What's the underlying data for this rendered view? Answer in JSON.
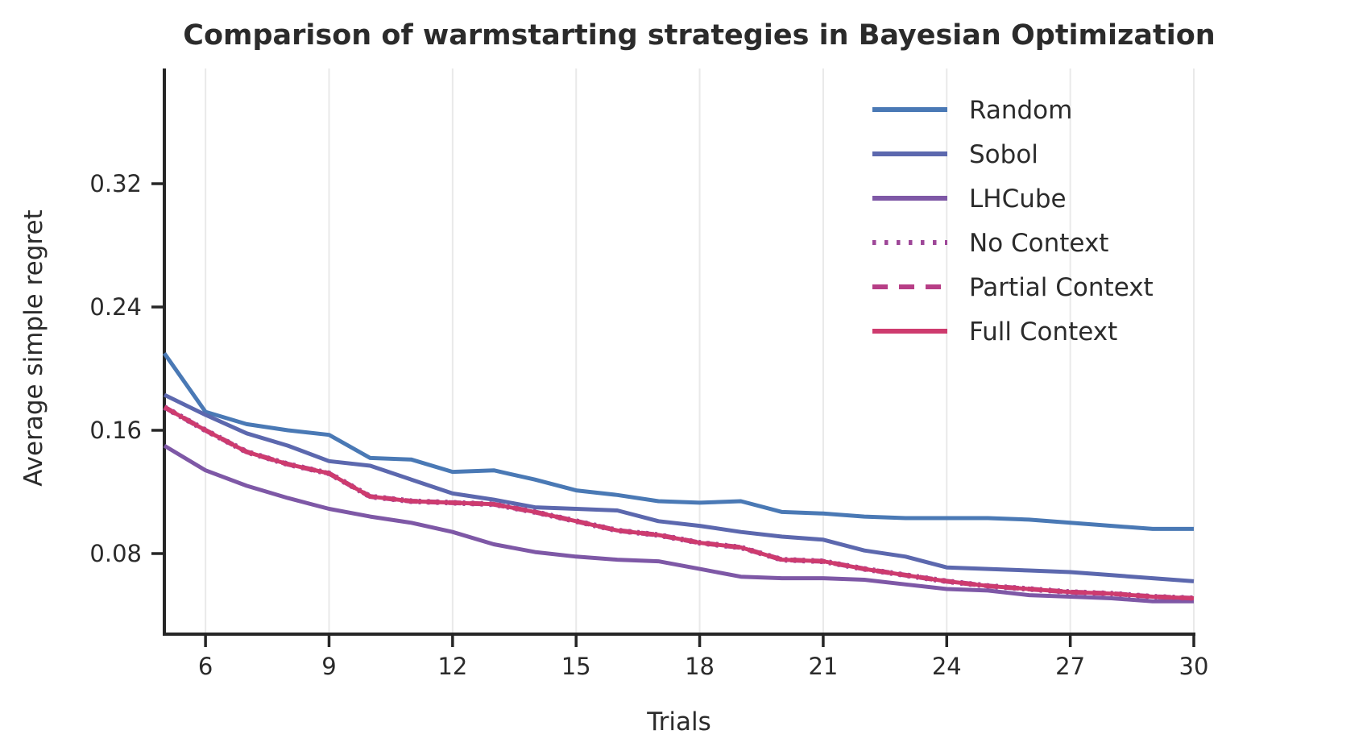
{
  "chart_data": {
    "type": "line",
    "title": "Comparison of warmstarting strategies in Bayesian Optimization",
    "xlabel": "Trials",
    "ylabel": "Average simple regret",
    "x": [
      5,
      6,
      7,
      8,
      9,
      10,
      11,
      12,
      13,
      14,
      15,
      16,
      17,
      18,
      19,
      20,
      21,
      22,
      23,
      24,
      25,
      26,
      27,
      28,
      29,
      30
    ],
    "xticks": [
      6,
      9,
      12,
      15,
      18,
      21,
      24,
      27,
      30
    ],
    "yticks": [
      0.08,
      0.16,
      0.24,
      0.32
    ],
    "xlim": [
      5,
      30
    ],
    "ylim": [
      0.028,
      0.395
    ],
    "grid": "vertical-only",
    "grid_color": "#e9e9e9",
    "legend_position": "upper-right",
    "series": [
      {
        "name": "Random",
        "color": "#4a79b5",
        "style": "solid",
        "values": [
          0.21,
          0.172,
          0.164,
          0.16,
          0.157,
          0.142,
          0.141,
          0.133,
          0.134,
          0.128,
          0.121,
          0.118,
          0.114,
          0.113,
          0.114,
          0.107,
          0.106,
          0.104,
          0.103,
          0.103,
          0.103,
          0.102,
          0.1,
          0.098,
          0.096,
          0.096
        ]
      },
      {
        "name": "Sobol",
        "color": "#5c68ae",
        "style": "solid",
        "values": [
          0.183,
          0.17,
          0.158,
          0.15,
          0.14,
          0.137,
          0.128,
          0.119,
          0.115,
          0.11,
          0.109,
          0.108,
          0.101,
          0.098,
          0.094,
          0.091,
          0.089,
          0.082,
          0.078,
          0.071,
          0.07,
          0.069,
          0.068,
          0.066,
          0.064,
          0.062
        ]
      },
      {
        "name": "LHCube",
        "color": "#7e58a6",
        "style": "solid",
        "values": [
          0.15,
          0.134,
          0.124,
          0.116,
          0.109,
          0.104,
          0.1,
          0.094,
          0.086,
          0.081,
          0.078,
          0.076,
          0.075,
          0.07,
          0.065,
          0.064,
          0.064,
          0.063,
          0.06,
          0.057,
          0.056,
          0.053,
          0.052,
          0.051,
          0.049,
          0.049
        ]
      },
      {
        "name": "No Context",
        "color": "#9e4798",
        "style": "dotted",
        "values": [
          0.175,
          0.16,
          0.146,
          0.138,
          0.132,
          0.117,
          0.114,
          0.113,
          0.112,
          0.107,
          0.101,
          0.095,
          0.092,
          0.087,
          0.084,
          0.076,
          0.075,
          0.07,
          0.066,
          0.062,
          0.059,
          0.057,
          0.055,
          0.054,
          0.052,
          0.051
        ]
      },
      {
        "name": "Partial Context",
        "color": "#b73e86",
        "style": "dashed",
        "values": [
          0.175,
          0.16,
          0.146,
          0.138,
          0.132,
          0.117,
          0.114,
          0.113,
          0.112,
          0.107,
          0.101,
          0.095,
          0.092,
          0.087,
          0.084,
          0.076,
          0.075,
          0.07,
          0.066,
          0.062,
          0.059,
          0.057,
          0.055,
          0.054,
          0.052,
          0.051
        ]
      },
      {
        "name": "Full Context",
        "color": "#ce3b6e",
        "style": "solid",
        "values": [
          0.175,
          0.16,
          0.146,
          0.138,
          0.132,
          0.117,
          0.114,
          0.113,
          0.112,
          0.107,
          0.101,
          0.095,
          0.092,
          0.087,
          0.084,
          0.076,
          0.075,
          0.07,
          0.066,
          0.062,
          0.059,
          0.057,
          0.055,
          0.054,
          0.052,
          0.051
        ]
      }
    ],
    "notes": "No Context and Partial Context curves overlap the Full Context curve almost exactly and are hidden beneath it"
  },
  "colors": {
    "text": "#2b2b2b",
    "spine": "#262626",
    "grid": "#e9e9e9",
    "background": "#ffffff"
  }
}
